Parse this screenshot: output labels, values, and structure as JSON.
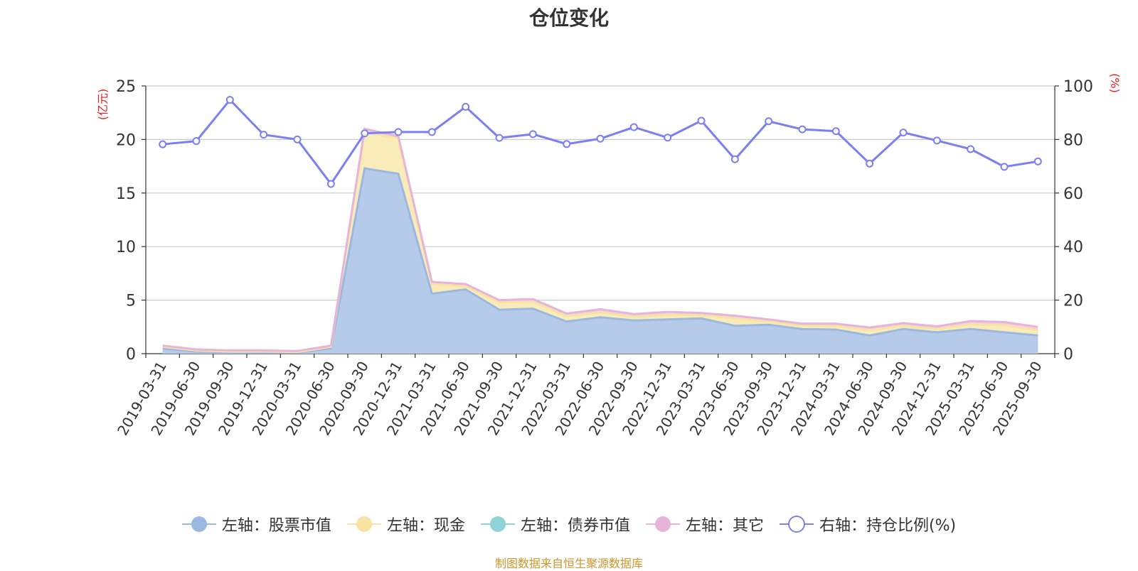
{
  "title": "仓位变化",
  "source": "制图数据来自恒生聚源数据库",
  "chart_data": {
    "type": "area",
    "title": "仓位变化",
    "x": [
      "2019-03-31",
      "2019-06-30",
      "2019-09-30",
      "2019-12-31",
      "2020-03-31",
      "2020-06-30",
      "2020-09-30",
      "2020-12-31",
      "2021-03-31",
      "2021-06-30",
      "2021-09-30",
      "2021-12-31",
      "2022-03-31",
      "2022-06-30",
      "2022-09-30",
      "2022-12-31",
      "2023-03-31",
      "2023-06-30",
      "2023-09-30",
      "2023-12-31",
      "2024-03-31",
      "2024-06-30",
      "2024-09-30",
      "2024-12-31",
      "2025-03-31",
      "2025-06-30",
      "2025-09-30"
    ],
    "left_axis": {
      "label": "(亿元)",
      "ylim": [
        0,
        25
      ],
      "ticks": [
        "0",
        "5",
        "10",
        "15",
        "20",
        "25"
      ]
    },
    "right_axis": {
      "label": "(%)",
      "ylim": [
        0,
        100
      ],
      "ticks": [
        "0",
        "20",
        "40",
        "60",
        "80",
        "100"
      ]
    },
    "grid": true,
    "legend_position": "bottom",
    "series": [
      {
        "name": "左轴：股票市值",
        "axis": "left",
        "kind": "stacked-area",
        "color": "#9bb8e0",
        "fill": "#b6cbea",
        "values": [
          0.5,
          0.2,
          0.15,
          0.12,
          0.1,
          0.5,
          17.3,
          16.8,
          5.6,
          6.0,
          4.1,
          4.2,
          3.0,
          3.4,
          3.1,
          3.2,
          3.3,
          2.6,
          2.7,
          2.3,
          2.25,
          1.7,
          2.3,
          2.0,
          2.3,
          2.0,
          1.7
        ]
      },
      {
        "name": "左轴：现金",
        "axis": "left",
        "kind": "stacked-area",
        "color": "#f7e3a3",
        "fill": "#f9ebba",
        "values": [
          0.15,
          0.1,
          0.05,
          0.08,
          0.05,
          0.15,
          3.4,
          3.3,
          0.9,
          0.3,
          0.7,
          0.65,
          0.5,
          0.45,
          0.35,
          0.45,
          0.3,
          0.7,
          0.3,
          0.3,
          0.35,
          0.5,
          0.3,
          0.3,
          0.45,
          0.65,
          0.5
        ]
      },
      {
        "name": "左轴：债券市值",
        "axis": "left",
        "kind": "stacked-area",
        "color": "#8fd3d6",
        "fill": "#a8dde0",
        "values": [
          0,
          0,
          0,
          0,
          0,
          0,
          0,
          0,
          0,
          0,
          0,
          0,
          0,
          0,
          0,
          0,
          0,
          0,
          0,
          0,
          0,
          0,
          0,
          0,
          0,
          0,
          0
        ]
      },
      {
        "name": "左轴：其它",
        "axis": "left",
        "kind": "stacked-area",
        "color": "#e6b4d9",
        "fill": "#f1cde8",
        "values": [
          0.1,
          0.1,
          0.1,
          0.1,
          0.1,
          0.1,
          0.3,
          0.2,
          0.2,
          0.2,
          0.2,
          0.25,
          0.25,
          0.3,
          0.25,
          0.25,
          0.2,
          0.25,
          0.2,
          0.2,
          0.2,
          0.25,
          0.25,
          0.25,
          0.3,
          0.3,
          0.3
        ]
      },
      {
        "name": "右轴：持仓比例(%)",
        "axis": "right",
        "kind": "line",
        "color": "#7b7ff2",
        "values": [
          78.2,
          79.4,
          94.8,
          81.8,
          80.0,
          63.4,
          82.3,
          82.8,
          82.8,
          92.2,
          80.6,
          82.0,
          78.3,
          80.3,
          84.6,
          80.7,
          87.0,
          72.6,
          86.8,
          83.8,
          83.1,
          71.0,
          82.6,
          79.6,
          76.4,
          69.8,
          71.8
        ]
      }
    ]
  }
}
